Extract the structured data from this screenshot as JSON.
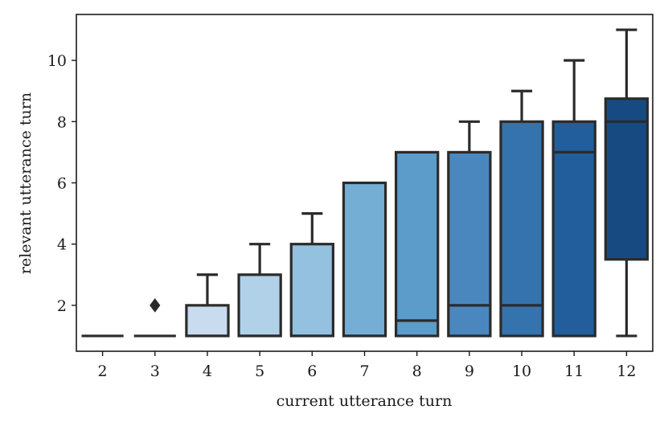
{
  "chart_data": {
    "type": "box",
    "title": "",
    "xlabel": "current utterance turn",
    "ylabel": "relevant utterance turn",
    "categories": [
      "2",
      "3",
      "4",
      "5",
      "6",
      "7",
      "8",
      "9",
      "10",
      "11",
      "12"
    ],
    "ylim": [
      0.5,
      11.5
    ],
    "yticks": [
      2,
      4,
      6,
      8,
      10
    ],
    "grid": false,
    "boxes": [
      {
        "category": "2",
        "whisker_low": 1,
        "q1": 1,
        "median": 1,
        "q3": 1,
        "whisker_high": 1,
        "outliers": [],
        "color": "#e6eef8"
      },
      {
        "category": "3",
        "whisker_low": 1,
        "q1": 1,
        "median": 1,
        "q3": 1,
        "whisker_high": 1,
        "outliers": [
          2
        ],
        "color": "#dce9f5"
      },
      {
        "category": "4",
        "whisker_low": 1,
        "q1": 1,
        "median": 1,
        "q3": 2,
        "whisker_high": 3,
        "outliers": [],
        "color": "#c9dbef"
      },
      {
        "category": "5",
        "whisker_low": 1,
        "q1": 1,
        "median": 1,
        "q3": 3,
        "whisker_high": 4,
        "outliers": [],
        "color": "#b0d1e8"
      },
      {
        "category": "6",
        "whisker_low": 1,
        "q1": 1,
        "median": 1,
        "q3": 4,
        "whisker_high": 5,
        "outliers": [],
        "color": "#93c1df"
      },
      {
        "category": "7",
        "whisker_low": 1,
        "q1": 1,
        "median": 1,
        "q3": 6,
        "whisker_high": 6,
        "outliers": [],
        "color": "#75aed4"
      },
      {
        "category": "8",
        "whisker_low": 1,
        "q1": 1,
        "median": 1.5,
        "q3": 7,
        "whisker_high": 7,
        "outliers": [],
        "color": "#5b9ccb"
      },
      {
        "category": "9",
        "whisker_low": 1,
        "q1": 1,
        "median": 2,
        "q3": 7,
        "whisker_high": 8,
        "outliers": [],
        "color": "#4a87bf"
      },
      {
        "category": "10",
        "whisker_low": 1,
        "q1": 1,
        "median": 2,
        "q3": 8,
        "whisker_high": 9,
        "outliers": [],
        "color": "#3573ae"
      },
      {
        "category": "11",
        "whisker_low": 1,
        "q1": 1,
        "median": 7,
        "q3": 8,
        "whisker_high": 10,
        "outliers": [],
        "color": "#225e9c"
      },
      {
        "category": "12",
        "whisker_low": 1,
        "q1": 3.5,
        "median": 8,
        "q3": 8.75,
        "whisker_high": 11,
        "outliers": [],
        "color": "#184a82"
      }
    ]
  }
}
